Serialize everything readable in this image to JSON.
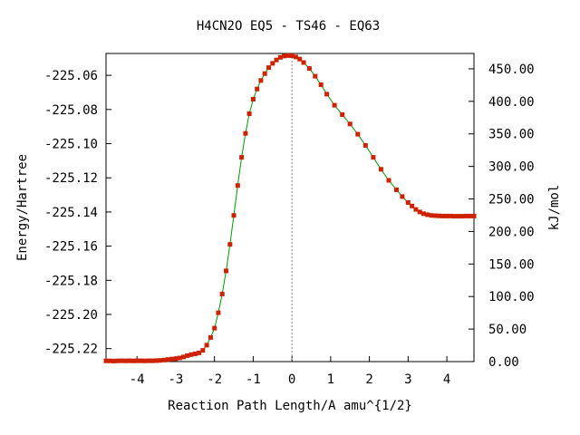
{
  "chart_data": {
    "type": "line",
    "title": "H4CN2O   EQ5 - TS46 - EQ63",
    "xlabel": "Reaction Path Length/A amu^{1/2}",
    "ylabel_left": "Energy/Hartree",
    "ylabel_right": "kJ/mol",
    "xlim": [
      -4.8,
      4.7
    ],
    "ylim_left": [
      -225.2276,
      -225.0472
    ],
    "ylim_right": [
      0.0,
      473.6
    ],
    "x_ticks": [
      -4,
      -3,
      -2,
      -1,
      0,
      1,
      2,
      3,
      4
    ],
    "y_left_ticks": [
      -225.06,
      -225.08,
      -225.1,
      -225.12,
      -225.14,
      -225.16,
      -225.18,
      -225.2,
      -225.22
    ],
    "y_left_tick_labels": [
      "-225.06",
      "-225.08",
      "-225.10",
      "-225.12",
      "-225.14",
      "-225.16",
      "-225.18",
      "-225.20",
      "-225.22"
    ],
    "y_right_ticks": [
      0,
      50,
      100,
      150,
      200,
      250,
      300,
      350,
      400,
      450
    ],
    "y_right_tick_labels": [
      "0.00",
      "50.00",
      "100.00",
      "150.00",
      "200.00",
      "250.00",
      "300.00",
      "350.00",
      "400.00",
      "450.00"
    ],
    "ts_marker_x": 0,
    "line_color": "#009900",
    "marker_color": "#cc2200",
    "reference_line_color": "#888888",
    "grid": false,
    "series": [
      {
        "x": [
          -4.8,
          -4.7,
          -4.6,
          -4.5,
          -4.4,
          -4.3,
          -4.2,
          -4.1,
          -4.0,
          -3.9,
          -3.8,
          -3.7,
          -3.6,
          -3.5,
          -3.4,
          -3.3,
          -3.2,
          -3.1,
          -3.0,
          -2.9,
          -2.8,
          -2.7,
          -2.6,
          -2.5,
          -2.4,
          -2.3,
          -2.2,
          -2.1,
          -2.0,
          -1.9,
          -1.8,
          -1.7,
          -1.6,
          -1.5,
          -1.4,
          -1.3,
          -1.2,
          -1.1,
          -1.0,
          -0.9,
          -0.8,
          -0.7,
          -0.6,
          -0.5,
          -0.4,
          -0.3,
          -0.2,
          -0.1,
          0.0,
          0.1,
          0.2,
          0.3,
          0.45,
          0.6,
          0.75,
          0.9,
          1.1,
          1.3,
          1.5,
          1.7,
          1.9,
          2.1,
          2.3,
          2.5,
          2.7,
          2.85,
          3.0,
          3.1,
          3.2,
          3.3,
          3.4,
          3.5,
          3.6,
          3.7,
          3.8,
          3.9,
          4.0,
          4.1,
          4.2,
          4.3,
          4.4,
          4.5,
          4.6,
          4.7
        ],
        "y": [
          -225.2272,
          -225.2272,
          -225.2273,
          -225.2272,
          -225.2271,
          -225.2272,
          -225.2271,
          -225.2272,
          -225.2271,
          -225.2271,
          -225.2272,
          -225.2271,
          -225.2271,
          -225.227,
          -225.2269,
          -225.2267,
          -225.2264,
          -225.2261,
          -225.2259,
          -225.2255,
          -225.2249,
          -225.2241,
          -225.2235,
          -225.2231,
          -225.2225,
          -225.221,
          -225.218,
          -225.2135,
          -225.208,
          -225.199,
          -225.188,
          -225.1745,
          -225.159,
          -225.142,
          -225.1245,
          -225.108,
          -225.094,
          -225.0825,
          -225.074,
          -225.068,
          -225.063,
          -225.059,
          -225.0555,
          -225.053,
          -225.051,
          -225.0495,
          -225.0487,
          -225.0484,
          -225.0485,
          -225.0492,
          -225.0505,
          -225.0525,
          -225.056,
          -225.0605,
          -225.0655,
          -225.071,
          -225.0775,
          -225.083,
          -225.0885,
          -225.0945,
          -225.101,
          -225.108,
          -225.115,
          -225.1215,
          -225.127,
          -225.131,
          -225.1345,
          -225.1365,
          -225.1385,
          -225.14,
          -225.141,
          -225.1416,
          -225.142,
          -225.1422,
          -225.1423,
          -225.1424,
          -225.1424,
          -225.1424,
          -225.1425,
          -225.1425,
          -225.1425,
          -225.1424,
          -225.1424,
          -225.1424
        ]
      }
    ]
  }
}
